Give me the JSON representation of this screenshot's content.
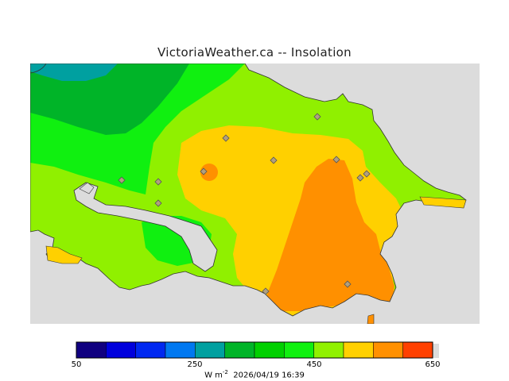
{
  "title": "VictoriaWeather.ca -- Insolation",
  "legend": {
    "ticks": [
      "50",
      "250",
      "450",
      "650"
    ],
    "colors": [
      "#100080",
      "#0000dc",
      "#0028f0",
      "#0078f0",
      "#00a0a0",
      "#00b428",
      "#00d000",
      "#10f010",
      "#90f000",
      "#ffd000",
      "#ff9000",
      "#ff4000",
      "#ff0000"
    ],
    "units_base": "W m",
    "units_exp": "-2",
    "timestamp": "2026/04/19 16:39"
  },
  "map": {
    "background": "#dcdcdc",
    "stations": 12
  }
}
